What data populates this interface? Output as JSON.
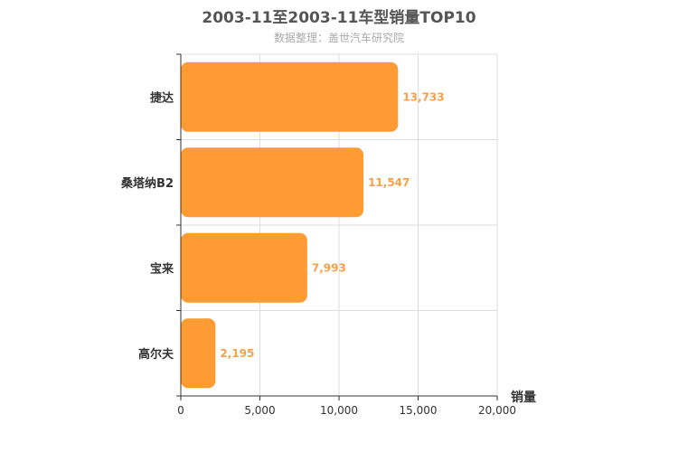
{
  "header": {
    "title": "2003-11至2003-11车型销量TOP10",
    "subtitle": "数据整理：盖世汽车研究院"
  },
  "chart_data": {
    "type": "bar",
    "orientation": "horizontal",
    "categories": [
      "捷达",
      "桑塔纳B2",
      "宝来",
      "高尔夫"
    ],
    "values": [
      13733,
      11547,
      7993,
      2195
    ],
    "value_labels": [
      "13,733",
      "11,547",
      "7,993",
      "2,195"
    ],
    "x_ticks": [
      0,
      5000,
      10000,
      15000,
      20000
    ],
    "x_tick_labels": [
      "0",
      "5,000",
      "10,000",
      "15,000",
      "20,000"
    ],
    "xlim": [
      0,
      20000
    ],
    "xlabel": "销量",
    "ylabel": "",
    "grid": true,
    "bar_color": "#ff9b33",
    "label_color": "#f5a04a"
  }
}
